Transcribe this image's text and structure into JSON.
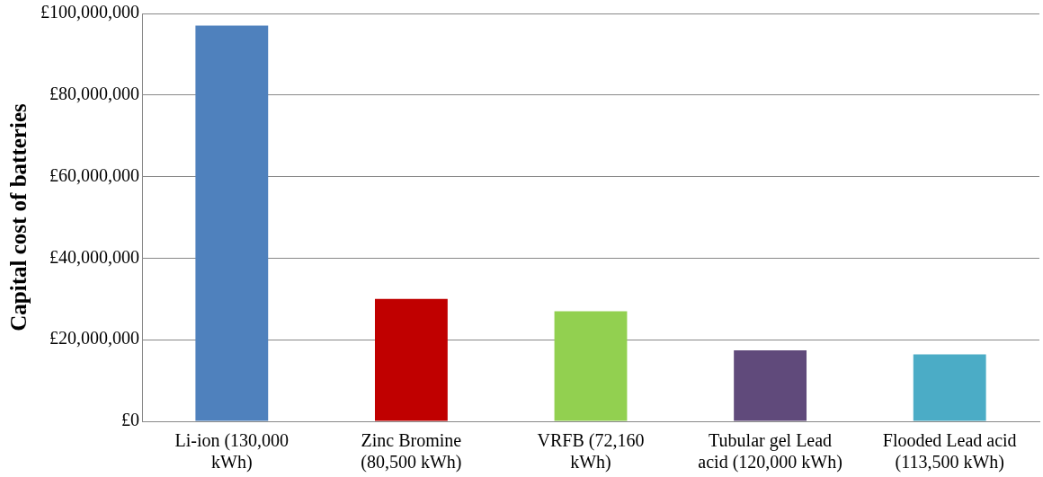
{
  "chart_data": {
    "type": "bar",
    "ylabel": "Capital cost of batteries",
    "categories": [
      "Li-ion (130,000 kWh)",
      "Zinc Bromine (80,500 kWh)",
      "VRFB (72,160 kWh)",
      "Tubular gel Lead acid (120,000 kWh)",
      "Flooded Lead acid (113,500 kWh)"
    ],
    "values": [
      97000000,
      30000000,
      27000000,
      17400000,
      16400000
    ],
    "colors": [
      "#4f81bd",
      "#c00000",
      "#92d050",
      "#604a7b",
      "#4bacc6"
    ],
    "ylim": [
      0,
      100000000
    ],
    "yticks": [
      {
        "value": 0,
        "label": "£0"
      },
      {
        "value": 20000000,
        "label": "£20,000,000"
      },
      {
        "value": 40000000,
        "label": "£40,000,000"
      },
      {
        "value": 60000000,
        "label": "£60,000,000"
      },
      {
        "value": 80000000,
        "label": "£80,000,000"
      },
      {
        "value": 100000000,
        "label": "£100,000,000"
      }
    ],
    "grid": "y",
    "legend": false
  }
}
